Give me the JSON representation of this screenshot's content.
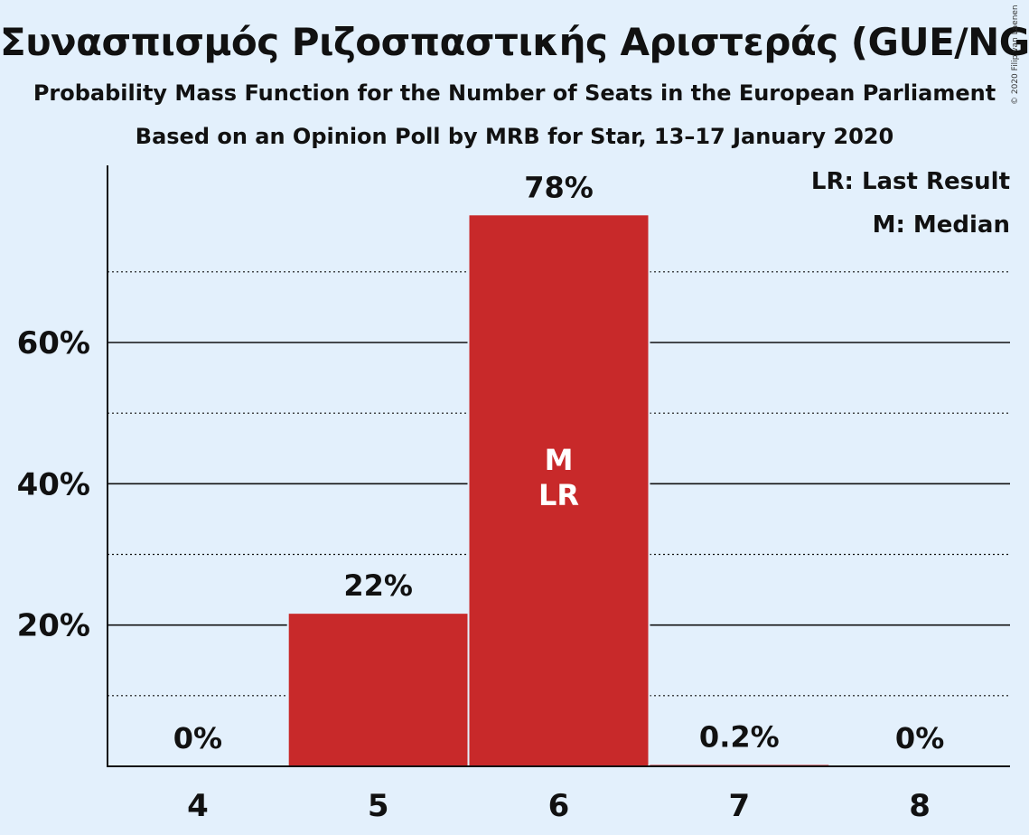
{
  "header": {
    "title": "Συνασπισμός Ριζοσπαστικής Αριστεράς (GUE/NGL)",
    "subtitle": "Probability Mass Function for the Number of Seats in the European Parliament",
    "subtitle2": "Based on an Opinion Poll by MRB for Star, 13–17 January 2020",
    "copyright": "© 2020 Filip van Laenen"
  },
  "legend": {
    "last_result": "LR: Last Result",
    "median": "M: Median",
    "position": "top-right"
  },
  "colors": {
    "background": "#e3f0fc",
    "bar": "#c8292a",
    "text": "#111111"
  },
  "chart_data": {
    "type": "bar",
    "title": "Συνασπισμός Ριζοσπαστικής Αριστεράς (GUE/NGL)",
    "subtitle": "Probability Mass Function for the Number of Seats in the European Parliament",
    "xlabel": "",
    "ylabel": "",
    "categories": [
      "4",
      "5",
      "6",
      "7",
      "8"
    ],
    "values": [
      0,
      21.6,
      78.0,
      0.2,
      0
    ],
    "value_labels": [
      "0%",
      "22%",
      "78%",
      "0.2%",
      "0%"
    ],
    "ylim": [
      0,
      80
    ],
    "y_major_ticks": [
      20,
      40,
      60
    ],
    "y_tick_labels": [
      "20%",
      "40%",
      "60%"
    ],
    "y_minor_gridlines": [
      10,
      30,
      50,
      70
    ],
    "grid": true,
    "bar_markers": [
      {
        "category": "6",
        "labels": [
          "M",
          "LR"
        ]
      }
    ]
  }
}
